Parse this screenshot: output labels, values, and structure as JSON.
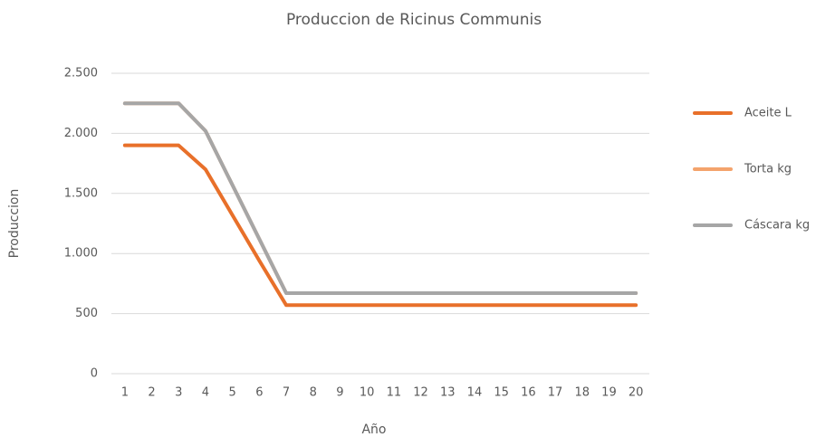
{
  "chart_data": {
    "type": "line",
    "title": "Produccion de Ricinus Communis",
    "xlabel": "Año",
    "ylabel": "Produccion",
    "categories": [
      "1",
      "2",
      "3",
      "4",
      "5",
      "6",
      "7",
      "8",
      "9",
      "10",
      "11",
      "12",
      "13",
      "14",
      "15",
      "16",
      "17",
      "18",
      "19",
      "20"
    ],
    "series": [
      {
        "name": "Aceite L",
        "color": "#e8702a",
        "values": [
          1900,
          1900,
          1900,
          1700,
          1320,
          940,
          570,
          570,
          570,
          570,
          570,
          570,
          570,
          570,
          570,
          570,
          570,
          570,
          570,
          570
        ]
      },
      {
        "name": "Torta kg",
        "color": "#f4a36c",
        "values": [
          2250,
          2250,
          2250,
          2020,
          1570,
          1120,
          670,
          670,
          670,
          670,
          670,
          670,
          670,
          670,
          670,
          670,
          670,
          670,
          670,
          670
        ]
      },
      {
        "name": "Cáscara kg",
        "color": "#a6a6a6",
        "values": [
          2250,
          2250,
          2250,
          2020,
          1570,
          1120,
          670,
          670,
          670,
          670,
          670,
          670,
          670,
          670,
          670,
          670,
          670,
          670,
          670,
          670
        ]
      }
    ],
    "ylim": [
      0,
      2500
    ],
    "yticks": [
      0,
      500,
      {
        "value": 1000,
        "label": "1.000"
      },
      {
        "value": 1500,
        "label": "1.500"
      },
      {
        "value": 2000,
        "label": "2.000"
      },
      {
        "value": 2500,
        "label": "2.500"
      }
    ],
    "grid": true,
    "legend": "right"
  }
}
